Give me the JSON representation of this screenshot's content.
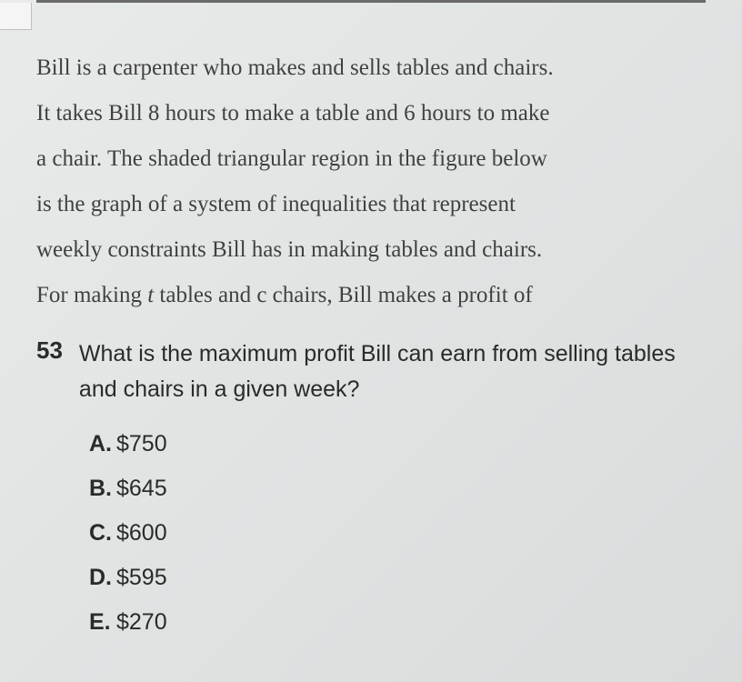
{
  "passage": {
    "line1": "Bill is a carpenter who makes and sells tables and chairs.",
    "line2": "It takes Bill 8 hours to make a table and 6 hours to make",
    "line3": "a chair. The shaded triangular region in the figure below",
    "line4": "is the graph of a system of inequalities that represent",
    "line5": "weekly constraints Bill has in making tables and chairs.",
    "line6_pre": "For making ",
    "line6_var": "t",
    "line6_post": " tables and c chairs, Bill makes a profit of"
  },
  "question": {
    "number": "53",
    "text": "What is the maximum profit Bill can earn from selling tables and chairs in a given week?"
  },
  "options": {
    "a": {
      "letter": "A.",
      "value": "$750"
    },
    "b": {
      "letter": "B.",
      "value": "$645"
    },
    "c": {
      "letter": "C.",
      "value": "$600"
    },
    "d": {
      "letter": "D.",
      "value": "$595"
    },
    "e": {
      "letter": "E.",
      "value": "$270"
    }
  },
  "colors": {
    "background": "#e2e5e3",
    "text_primary": "#3a3a3a",
    "text_bold": "#2a2a2a",
    "border": "#6a6a6a"
  },
  "typography": {
    "passage_font": "Georgia serif",
    "question_font": "Arial sans-serif",
    "passage_size_pt": 19,
    "question_size_pt": 19,
    "number_weight": "bold",
    "option_letter_weight": "bold"
  }
}
